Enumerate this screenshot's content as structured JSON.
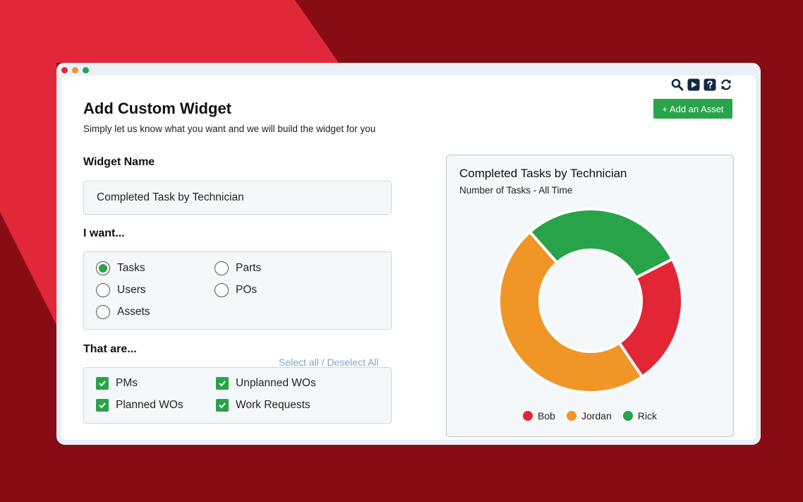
{
  "colors": {
    "background_dark": "#870c14",
    "background_bright": "#e0283a",
    "green": "#28a349",
    "orange": "#f09627",
    "red": "#e32636",
    "link": "#7aa7d6"
  },
  "window": {
    "dots": [
      "#e3263a",
      "#f09627",
      "#28a349"
    ],
    "toolbar_icons": [
      "search-icon",
      "play-icon",
      "help-icon",
      "refresh-icon"
    ]
  },
  "header": {
    "title": "Add Custom Widget",
    "subtitle": "Simply let us know what you want and we will build the widget for you",
    "add_asset_label": "+ Add an Asset"
  },
  "form": {
    "widget_name_label": "Widget Name",
    "widget_name_value": "Completed Task by Technician",
    "i_want_label": "I want...",
    "radio_options": [
      {
        "label": "Tasks",
        "selected": true
      },
      {
        "label": "Parts",
        "selected": false
      },
      {
        "label": "Users",
        "selected": false
      },
      {
        "label": "POs",
        "selected": false
      },
      {
        "label": "Assets",
        "selected": false
      }
    ],
    "that_are_label": "That are...",
    "select_all": "Select all",
    "separator": "/",
    "deselect_all": "Deselect All",
    "checkbox_options": [
      {
        "label": "PMs",
        "checked": true
      },
      {
        "label": "Unplanned WOs",
        "checked": true
      },
      {
        "label": "Planned WOs",
        "checked": true
      },
      {
        "label": "Work Requests",
        "checked": true
      }
    ]
  },
  "chart_data": {
    "type": "pie",
    "title": "Completed Tasks by Technician",
    "subtitle": "Number of Tasks - All Time",
    "legend_position": "bottom",
    "series": [
      {
        "name": "Bob",
        "value": 23,
        "color": "#e32636"
      },
      {
        "name": "Jordan",
        "value": 48,
        "color": "#f09627"
      },
      {
        "name": "Rick",
        "value": 29,
        "color": "#28a349"
      }
    ]
  }
}
